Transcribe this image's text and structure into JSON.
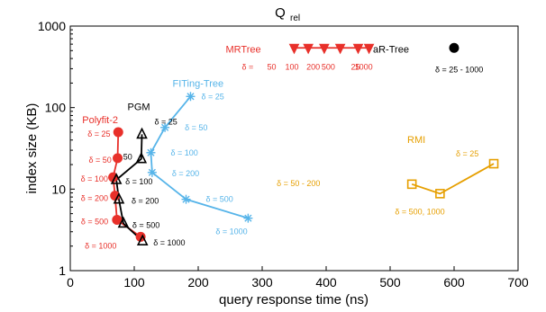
{
  "chart_data": {
    "type": "scatter",
    "title": {
      "main": "Q",
      "sub": "rel"
    },
    "xlabel": "query response time (ns)",
    "ylabel": "index size (KB)",
    "xlim": [
      0,
      700
    ],
    "ylim": [
      1,
      1000
    ],
    "yscale": "log",
    "grid": false,
    "x_ticks": [
      0,
      100,
      200,
      300,
      400,
      500,
      600,
      700
    ],
    "y_ticks": [
      {
        "value": 1,
        "label": "1"
      },
      {
        "value": 10,
        "label": "10"
      },
      {
        "value": 100,
        "label": "100"
      },
      {
        "value": 1000,
        "label": "1000"
      }
    ],
    "series": [
      {
        "name": "Polyfit-2",
        "color": "#e8302a",
        "marker": "circle",
        "points": [
          {
            "x": 75,
            "y": 50,
            "label": "δ = 25"
          },
          {
            "x": 74,
            "y": 24,
            "label": "δ = 50"
          },
          {
            "x": 67,
            "y": 14,
            "label": "δ = 100"
          },
          {
            "x": 70,
            "y": 8.3,
            "label": "δ = 200"
          },
          {
            "x": 73,
            "y": 4.2,
            "label": "δ = 500"
          },
          {
            "x": 110,
            "y": 2.6,
            "label": "δ = 1000"
          }
        ]
      },
      {
        "name": "PGM",
        "color": "#000000",
        "marker": "triangle-up-open",
        "points": [
          {
            "x": 112,
            "y": 47,
            "label": "δ = 25"
          },
          {
            "x": 111,
            "y": 23.5,
            "label": "50"
          },
          {
            "x": 72,
            "y": 13,
            "label": "δ = 100"
          },
          {
            "x": 76,
            "y": 7.5,
            "label": "δ = 200"
          },
          {
            "x": 83,
            "y": 3.8,
            "label": "δ = 500"
          },
          {
            "x": 113,
            "y": 2.3,
            "label": "δ = 1000"
          }
        ]
      },
      {
        "name": "FITing-Tree",
        "color": "#56b4e9",
        "marker": "asterisk",
        "points": [
          {
            "x": 188,
            "y": 137,
            "label": "δ = 25"
          },
          {
            "x": 148,
            "y": 57,
            "label": "δ = 50"
          },
          {
            "x": 126,
            "y": 28,
            "label": "δ = 100"
          },
          {
            "x": 128,
            "y": 16,
            "label": "δ = 200"
          },
          {
            "x": 181,
            "y": 7.5,
            "label": "δ = 500"
          },
          {
            "x": 278,
            "y": 4.4,
            "label": "δ = 1000"
          }
        ]
      },
      {
        "name": "RMI",
        "color": "#e69f00",
        "marker": "square-open",
        "points": [
          {
            "x": 662,
            "y": 20.5,
            "label": "δ = 25"
          },
          {
            "x": 534,
            "y": 11.5,
            "label": "δ = 50 - 200"
          },
          {
            "x": 578,
            "y": 8.8,
            "label": "δ = 500, 1000"
          }
        ]
      },
      {
        "name": "MRTree",
        "color": "#e8302a",
        "marker": "triangle-down",
        "points": [
          {
            "x": 350,
            "y": 540
          },
          {
            "x": 372,
            "y": 540
          },
          {
            "x": 397,
            "y": 540
          },
          {
            "x": 422,
            "y": 540
          },
          {
            "x": 450,
            "y": 540
          },
          {
            "x": 467,
            "y": 540
          }
        ],
        "labels_text": [
          "δ = ",
          "50",
          "100",
          "200",
          "500",
          "25",
          "1000"
        ]
      },
      {
        "name": "aR-Tree",
        "color": "#000000",
        "marker": "circle",
        "points": [
          {
            "x": 600,
            "y": 540,
            "label": "δ = 25 - 1000"
          }
        ]
      }
    ]
  }
}
